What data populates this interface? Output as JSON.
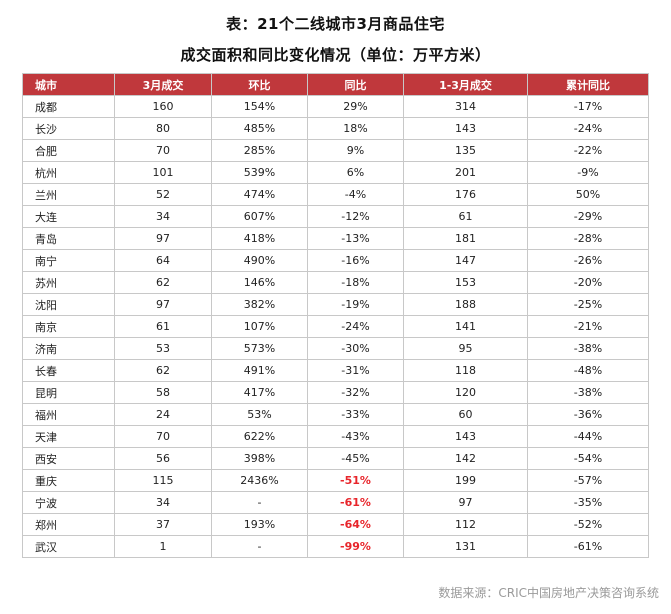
{
  "title_line1": "表：21个二线城市3月商品住宅",
  "title_line2": "成交面积和同比变化情况（单位：万平方米）",
  "headers": [
    "城市",
    "3月成交",
    "环比",
    "同比",
    "1-3月成交",
    "累计同比"
  ],
  "rows": [
    {
      "city": "成都",
      "march": "160",
      "mom": "154%",
      "yoy": "29%",
      "q1": "314",
      "cum_yoy": "-17%"
    },
    {
      "city": "长沙",
      "march": "80",
      "mom": "485%",
      "yoy": "18%",
      "q1": "143",
      "cum_yoy": "-24%"
    },
    {
      "city": "合肥",
      "march": "70",
      "mom": "285%",
      "yoy": "9%",
      "q1": "135",
      "cum_yoy": "-22%"
    },
    {
      "city": "杭州",
      "march": "101",
      "mom": "539%",
      "yoy": "6%",
      "q1": "201",
      "cum_yoy": "-9%"
    },
    {
      "city": "兰州",
      "march": "52",
      "mom": "474%",
      "yoy": "-4%",
      "q1": "176",
      "cum_yoy": "50%"
    },
    {
      "city": "大连",
      "march": "34",
      "mom": "607%",
      "yoy": "-12%",
      "q1": "61",
      "cum_yoy": "-29%"
    },
    {
      "city": "青岛",
      "march": "97",
      "mom": "418%",
      "yoy": "-13%",
      "q1": "181",
      "cum_yoy": "-28%"
    },
    {
      "city": "南宁",
      "march": "64",
      "mom": "490%",
      "yoy": "-16%",
      "q1": "147",
      "cum_yoy": "-26%"
    },
    {
      "city": "苏州",
      "march": "62",
      "mom": "146%",
      "yoy": "-18%",
      "q1": "153",
      "cum_yoy": "-20%"
    },
    {
      "city": "沈阳",
      "march": "97",
      "mom": "382%",
      "yoy": "-19%",
      "q1": "188",
      "cum_yoy": "-25%"
    },
    {
      "city": "南京",
      "march": "61",
      "mom": "107%",
      "yoy": "-24%",
      "q1": "141",
      "cum_yoy": "-21%"
    },
    {
      "city": "济南",
      "march": "53",
      "mom": "573%",
      "yoy": "-30%",
      "q1": "95",
      "cum_yoy": "-38%"
    },
    {
      "city": "长春",
      "march": "62",
      "mom": "491%",
      "yoy": "-31%",
      "q1": "118",
      "cum_yoy": "-48%"
    },
    {
      "city": "昆明",
      "march": "58",
      "mom": "417%",
      "yoy": "-32%",
      "q1": "120",
      "cum_yoy": "-38%"
    },
    {
      "city": "福州",
      "march": "24",
      "mom": "53%",
      "yoy": "-33%",
      "q1": "60",
      "cum_yoy": "-36%"
    },
    {
      "city": "天津",
      "march": "70",
      "mom": "622%",
      "yoy": "-43%",
      "q1": "143",
      "cum_yoy": "-44%"
    },
    {
      "city": "西安",
      "march": "56",
      "mom": "398%",
      "yoy": "-45%",
      "q1": "142",
      "cum_yoy": "-54%"
    },
    {
      "city": "重庆",
      "march": "115",
      "mom": "2436%",
      "yoy": "-51%",
      "q1": "199",
      "cum_yoy": "-57%",
      "highlight": true
    },
    {
      "city": "宁波",
      "march": "34",
      "mom": "-",
      "yoy": "-61%",
      "q1": "97",
      "cum_yoy": "-35%",
      "highlight": true
    },
    {
      "city": "郑州",
      "march": "37",
      "mom": "193%",
      "yoy": "-64%",
      "q1": "112",
      "cum_yoy": "-52%",
      "highlight": true
    },
    {
      "city": "武汉",
      "march": "1",
      "mom": "-",
      "yoy": "-99%",
      "q1": "131",
      "cum_yoy": "-61%",
      "highlight": true
    }
  ],
  "source": "数据来源：CRIC中国房地产决策咨询系统",
  "colors": {
    "header_bg": "#c0383c",
    "highlight_text": "#e8252b",
    "source_text": "#9a9a9a"
  }
}
